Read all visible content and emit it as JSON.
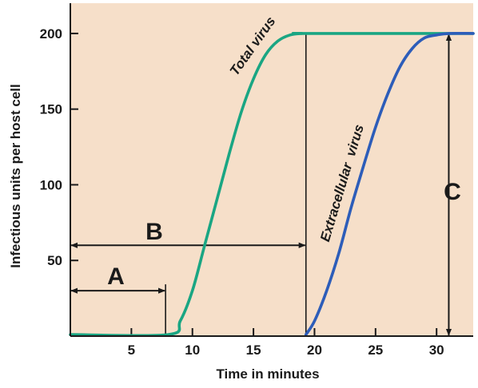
{
  "chart_data": {
    "type": "line",
    "title": "",
    "xlabel": "Time in minutes",
    "ylabel": "Infectious units per host cell",
    "xlim": [
      0,
      33
    ],
    "ylim": [
      0,
      220
    ],
    "xticks": [
      5,
      10,
      15,
      20,
      25,
      30
    ],
    "yticks": [
      50,
      100,
      150,
      200
    ],
    "grid": false,
    "colors": {
      "background": "#f6dfc9",
      "total": "#1aa683",
      "extracellular": "#2d5db9",
      "annotation": "#1a1a1a"
    },
    "series": [
      {
        "name": "Total virus",
        "x": [
          0,
          8,
          9,
          10,
          11,
          12,
          13,
          14,
          15,
          16,
          17,
          18,
          19,
          19.3,
          33
        ],
        "y": [
          1,
          1,
          10,
          30,
          60,
          90,
          120,
          148,
          170,
          186,
          195,
          199,
          200,
          200,
          200
        ]
      },
      {
        "name": "Extracellular  virus",
        "x": [
          19.3,
          20,
          21,
          22,
          23,
          24,
          25,
          26,
          27,
          28,
          29,
          30,
          31,
          33
        ],
        "y": [
          1,
          10,
          30,
          55,
          85,
          112,
          138,
          160,
          178,
          190,
          197,
          199,
          200,
          200
        ]
      }
    ],
    "annotations": [
      {
        "label": "A",
        "x_from": 0,
        "x_to": 7.8,
        "y": 30
      },
      {
        "label": "B",
        "x_from": 0,
        "x_to": 19.3,
        "y": 60
      },
      {
        "label": "C",
        "x": 31,
        "y_from": 0,
        "y_to": 200
      }
    ]
  }
}
